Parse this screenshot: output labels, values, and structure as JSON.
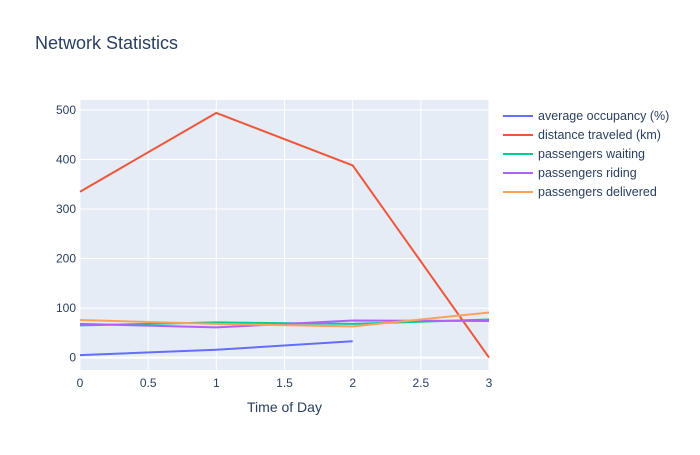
{
  "chart_data": {
    "type": "line",
    "title": "Network Statistics",
    "xlabel": "Time of Day",
    "ylabel": "",
    "xlim": [
      0,
      3
    ],
    "ylim": [
      -25,
      520
    ],
    "xticks": [
      0,
      0.5,
      1,
      1.5,
      2,
      2.5,
      3
    ],
    "xtick_labels": [
      "0",
      "0.5",
      "1",
      "1.5",
      "2",
      "2.5",
      "3"
    ],
    "yticks": [
      0,
      100,
      200,
      300,
      400,
      500
    ],
    "ytick_labels": [
      "0",
      "100",
      "200",
      "300",
      "400",
      "500"
    ],
    "grid": true,
    "legend_position": "right",
    "series": [
      {
        "name": "average occupancy (%)",
        "color": "#636efa",
        "x": [
          0,
          1,
          2
        ],
        "y": [
          5,
          16,
          33
        ]
      },
      {
        "name": "distance traveled (km)",
        "color": "#ef553b",
        "x": [
          0,
          1,
          2,
          3
        ],
        "y": [
          335,
          494,
          388,
          0
        ]
      },
      {
        "name": "passengers waiting",
        "color": "#00cc96",
        "x": [
          0,
          1,
          2,
          3
        ],
        "y": [
          65,
          71,
          68,
          77
        ]
      },
      {
        "name": "passengers riding",
        "color": "#ab63fa",
        "x": [
          0,
          1,
          2,
          3
        ],
        "y": [
          68,
          61,
          75,
          74
        ]
      },
      {
        "name": "passengers delivered",
        "color": "#ffa15a",
        "x": [
          0,
          1,
          2,
          3
        ],
        "y": [
          76,
          68,
          63,
          91
        ]
      }
    ]
  }
}
